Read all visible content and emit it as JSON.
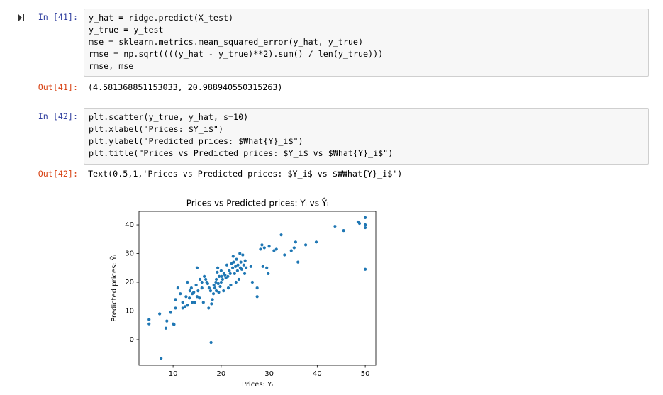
{
  "cells": [
    {
      "prompt": "In [41]:",
      "code": [
        "y_hat = ridge.predict(X_test)",
        "y_true = y_test",
        "mse = sklearn.metrics.mean_squared_error(y_hat, y_true)",
        "rmse = np.sqrt((((y_hat - y_true)**2).sum() / len(y_true)))",
        "rmse, mse"
      ],
      "out_prompt": "Out[41]:",
      "output": "(4.581368851153033, 20.988940550315263)"
    },
    {
      "prompt": "In [42]:",
      "code": [
        "plt.scatter(y_true, y_hat, s=10)",
        "plt.xlabel(\"Prices: $Y_i$\")",
        "plt.ylabel(\"Predicted prices: $₩hat{Y}_i$\")",
        "plt.title(\"Prices vs Predicted prices: $Y_i$ vs $₩hat{Y}_i$\")"
      ],
      "out_prompt": "Out[42]:",
      "output": "Text(0.5,1,'Prices vs Predicted prices: $Y_i$ vs $₩₩hat{Y}_i$')"
    }
  ],
  "chart_data": {
    "type": "scatter",
    "title": "Prices vs Predicted prices: Yᵢ vs Ŷᵢ",
    "x_label": "Prices: Yᵢ",
    "y_label": "Predicted prices: Ŷᵢ",
    "color": "#1f77b4",
    "x": [
      5,
      5,
      7.5,
      7.2,
      8.5,
      8.7,
      9.5,
      10,
      10.2,
      10.5,
      10.5,
      11,
      11.5,
      12,
      12,
      12.5,
      12.7,
      13,
      13,
      13.4,
      13.5,
      13.8,
      14,
      14,
      14.3,
      14.5,
      14.8,
      15,
      15,
      15.2,
      15.5,
      15.6,
      16,
      16,
      16.3,
      16.5,
      16.8,
      17,
      17.2,
      17.4,
      17.5,
      17.8,
      17.9,
      18,
      18.2,
      18.4,
      18.5,
      18.7,
      18.9,
      19,
      19,
      19.2,
      19.3,
      19.4,
      19.5,
      19.6,
      19.8,
      20,
      20,
      20.1,
      20.3,
      20.5,
      20.6,
      20.8,
      21,
      21.2,
      21.4,
      21.5,
      21.7,
      21.9,
      22,
      22.2,
      22.4,
      22.5,
      22.6,
      22.8,
      23,
      23.1,
      23.2,
      23.4,
      23.5,
      23.7,
      23.9,
      24,
      24.1,
      24.3,
      24.5,
      24.7,
      24.9,
      25,
      25.2,
      26.2,
      26.5,
      27.5,
      27.5,
      28.2,
      28.5,
      28.7,
      29,
      29.5,
      29.8,
      30,
      31,
      31.5,
      32.5,
      33.2,
      34.6,
      35.2,
      35.5,
      36,
      37.6,
      39.8,
      43.7,
      45.5,
      48.5,
      48.8,
      50,
      50,
      50,
      50
    ],
    "y": [
      7,
      5.5,
      -6.5,
      9,
      4,
      6.5,
      9.5,
      5.5,
      5.3,
      11,
      14,
      18,
      16,
      11,
      13,
      11.5,
      15,
      20,
      12,
      14.5,
      17,
      18,
      13,
      16,
      16.5,
      13,
      19,
      15,
      25,
      17,
      14.5,
      21,
      20,
      18,
      13,
      22,
      21,
      20,
      19.5,
      11,
      18,
      17,
      -1,
      12.5,
      14,
      16,
      19,
      18,
      20,
      21,
      17,
      23.5,
      25,
      19.5,
      16.5,
      22,
      18.5,
      20,
      24,
      22,
      21,
      17,
      23,
      22.5,
      21.5,
      26,
      22,
      18,
      24,
      23,
      19,
      26.5,
      25,
      29,
      27,
      23,
      25.5,
      20,
      28,
      24,
      26,
      21,
      30,
      25,
      27,
      24.5,
      29.5,
      26,
      23,
      27.5,
      25,
      25.5,
      20,
      18,
      15,
      31.5,
      33,
      25.5,
      32,
      25,
      23,
      32.5,
      31,
      31.5,
      36.5,
      29.5,
      31,
      32,
      34,
      27,
      33,
      34,
      39.5,
      38,
      41,
      40.5,
      42.5,
      40,
      39,
      24.5
    ],
    "xlim": [
      2.9,
      52.2
    ],
    "ylim": [
      -8.9,
      44.7
    ],
    "xticks": [
      10,
      20,
      30,
      40,
      50
    ],
    "yticks": [
      0,
      10,
      20,
      30,
      40
    ]
  }
}
